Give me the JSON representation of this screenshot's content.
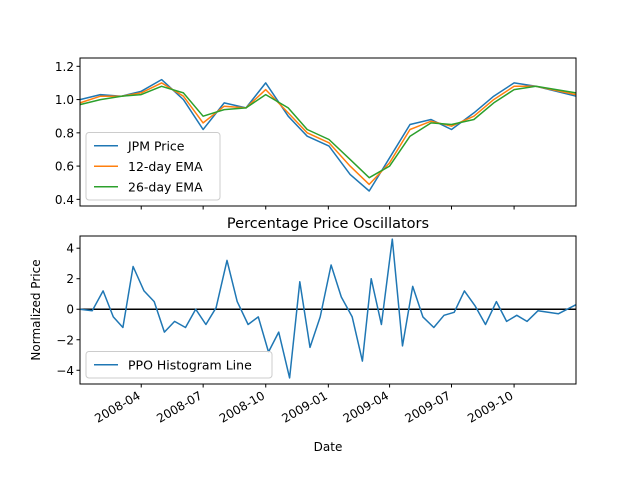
{
  "chart_data": [
    {
      "type": "line",
      "title": "",
      "xlabel": "",
      "ylabel": "",
      "x_range": [
        "2008-01-02",
        "2009-12-31"
      ],
      "ylim": [
        0.36,
        1.25
      ],
      "yticks": [
        0.4,
        0.6,
        0.8,
        1.0,
        1.2
      ],
      "ytick_labels": [
        "0.4",
        "0.6",
        "0.8",
        "1.0",
        "1.2"
      ],
      "legend_position": "lower-left",
      "x": [
        "2008-01-02",
        "2008-02-01",
        "2008-03-03",
        "2008-04-01",
        "2008-05-01",
        "2008-06-02",
        "2008-07-01",
        "2008-08-01",
        "2008-09-02",
        "2008-10-01",
        "2008-11-03",
        "2008-12-01",
        "2009-01-02",
        "2009-02-02",
        "2009-03-02",
        "2009-04-01",
        "2009-05-01",
        "2009-06-01",
        "2009-07-01",
        "2009-08-03",
        "2009-09-01",
        "2009-10-01",
        "2009-11-02",
        "2009-12-31"
      ],
      "series": [
        {
          "name": "JPM Price",
          "color": "#1f77b4",
          "values": [
            1.0,
            1.03,
            1.02,
            1.05,
            1.12,
            1.0,
            0.82,
            0.98,
            0.95,
            1.1,
            0.9,
            0.78,
            0.72,
            0.55,
            0.45,
            0.65,
            0.85,
            0.88,
            0.82,
            0.92,
            1.02,
            1.1,
            1.08,
            1.02
          ]
        },
        {
          "name": "12-day EMA",
          "color": "#ff7f0e",
          "values": [
            0.98,
            1.02,
            1.02,
            1.04,
            1.1,
            1.02,
            0.86,
            0.96,
            0.95,
            1.06,
            0.92,
            0.8,
            0.74,
            0.6,
            0.49,
            0.62,
            0.82,
            0.87,
            0.84,
            0.9,
            1.0,
            1.08,
            1.08,
            1.03
          ]
        },
        {
          "name": "26-day EMA",
          "color": "#2ca02c",
          "values": [
            0.97,
            1.0,
            1.02,
            1.03,
            1.08,
            1.04,
            0.9,
            0.94,
            0.95,
            1.03,
            0.95,
            0.82,
            0.76,
            0.64,
            0.53,
            0.6,
            0.78,
            0.86,
            0.85,
            0.88,
            0.98,
            1.06,
            1.08,
            1.04
          ]
        }
      ]
    },
    {
      "type": "line",
      "title": "Percentage Price Oscillators",
      "xlabel": "Date",
      "ylabel": "Normalized Price",
      "x_range": [
        "2008-01-02",
        "2009-12-31"
      ],
      "ylim": [
        -4.9,
        4.8
      ],
      "yticks": [
        -4,
        -2,
        0,
        2,
        4
      ],
      "ytick_labels": [
        "−4",
        "−2",
        "0",
        "2",
        "4"
      ],
      "xtick_labels": [
        "2008-04",
        "2008-07",
        "2008-10",
        "2009-01",
        "2009-04",
        "2009-07",
        "2009-10"
      ],
      "legend_position": "lower-left",
      "zero_line": true,
      "x": [
        "2008-01-02",
        "2008-01-20",
        "2008-02-05",
        "2008-02-20",
        "2008-03-05",
        "2008-03-20",
        "2008-04-05",
        "2008-04-20",
        "2008-05-05",
        "2008-05-20",
        "2008-06-05",
        "2008-06-20",
        "2008-07-05",
        "2008-07-20",
        "2008-08-05",
        "2008-08-20",
        "2008-09-05",
        "2008-09-20",
        "2008-10-05",
        "2008-10-20",
        "2008-11-05",
        "2008-11-20",
        "2008-12-05",
        "2008-12-20",
        "2009-01-05",
        "2009-01-20",
        "2009-02-05",
        "2009-02-20",
        "2009-03-05",
        "2009-03-20",
        "2009-04-05",
        "2009-04-20",
        "2009-05-05",
        "2009-05-20",
        "2009-06-05",
        "2009-06-20",
        "2009-07-05",
        "2009-07-20",
        "2009-08-05",
        "2009-08-20",
        "2009-09-05",
        "2009-09-20",
        "2009-10-05",
        "2009-10-20",
        "2009-11-05",
        "2009-11-20",
        "2009-12-05",
        "2009-12-31"
      ],
      "series": [
        {
          "name": "PPO Histogram Line",
          "color": "#1f77b4",
          "values": [
            0.0,
            -0.1,
            1.2,
            -0.5,
            -1.2,
            2.8,
            1.2,
            0.5,
            -1.5,
            -0.8,
            -1.2,
            0.0,
            -1.0,
            0.1,
            3.2,
            0.5,
            -1.0,
            -0.5,
            -2.8,
            -1.5,
            -4.5,
            1.8,
            -2.5,
            -0.5,
            2.9,
            0.8,
            -0.5,
            -3.4,
            2.0,
            -1.0,
            4.6,
            -2.4,
            1.5,
            -0.5,
            -1.2,
            -0.4,
            -0.2,
            1.2,
            0.2,
            -1.0,
            0.5,
            -0.8,
            -0.4,
            -0.8,
            -0.1,
            -0.2,
            -0.3,
            0.3
          ]
        }
      ]
    }
  ]
}
